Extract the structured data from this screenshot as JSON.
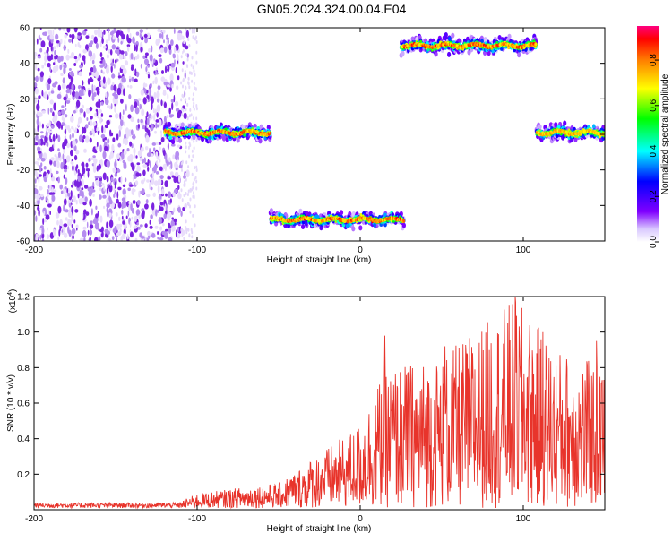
{
  "figure": {
    "title": "GN05.2024.324.00.04.E04"
  },
  "colorbar": {
    "label": "Normalized spectral amplitude",
    "range": [
      0,
      0.95
    ],
    "ticks": [
      "0.0",
      "0.2",
      "0.4",
      "0.6",
      "0.8"
    ],
    "tick_values": [
      0,
      0.2,
      0.4,
      0.6,
      0.8
    ],
    "colormap": "rainbow",
    "colors": [
      "#ffffff",
      "#8000ff",
      "#0000ff",
      "#00ffff",
      "#00ff00",
      "#ffff00",
      "#ff8000",
      "#ff0000",
      "#ff0080"
    ]
  },
  "chart_data": [
    {
      "type": "heatmap",
      "name": "spectrogram",
      "xlabel": "Height of straight line (km)",
      "ylabel": "Frequency (Hz)",
      "xlim": [
        -200,
        150
      ],
      "ylim": [
        -60,
        60
      ],
      "x_ticks": [
        "-200",
        "-100",
        "0",
        "100"
      ],
      "x_tick_values": [
        -200,
        -100,
        0,
        100
      ],
      "y_ticks": [
        "60",
        "40",
        "20",
        "0",
        "-20",
        "-40",
        "-60"
      ],
      "y_tick_values": [
        60,
        40,
        20,
        0,
        -20,
        -40,
        -60
      ],
      "noise_region": {
        "x_range": [
          -200,
          -110
        ],
        "amplitude": 0.1
      },
      "ridges": [
        {
          "x_range": [
            -120,
            -55
          ],
          "frequency": 1,
          "peak_amplitude": 0.9
        },
        {
          "x_range": [
            -55,
            27
          ],
          "frequency": -48,
          "peak_amplitude": 0.9
        },
        {
          "x_range": [
            25,
            108
          ],
          "frequency": 50,
          "peak_amplitude": 0.9
        },
        {
          "x_range": [
            108,
            150
          ],
          "frequency": 1,
          "peak_amplitude": 0.8
        }
      ]
    },
    {
      "type": "line",
      "name": "snr",
      "xlabel": "Height of straight line (km)",
      "ylabel": "SNR (10 * v/v)",
      "y_scale_label": "(x10",
      "y_scale_exponent": "4",
      "y_scale_close": ")",
      "xlim": [
        -200,
        150
      ],
      "ylim": [
        0,
        1.2
      ],
      "x_ticks": [
        "-200",
        "-100",
        "0",
        "100"
      ],
      "x_tick_values": [
        -200,
        -100,
        0,
        100
      ],
      "y_ticks": [
        "0.2",
        "0.4",
        "0.6",
        "0.8",
        "1.0",
        "1.2"
      ],
      "y_tick_values": [
        0.2,
        0.4,
        0.6,
        0.8,
        1.0,
        1.2
      ],
      "color": "#e8342b",
      "envelope": [
        {
          "x": -200,
          "y": 0.04
        },
        {
          "x": -110,
          "y": 0.04
        },
        {
          "x": -100,
          "y": 0.08
        },
        {
          "x": -70,
          "y": 0.12
        },
        {
          "x": -50,
          "y": 0.14
        },
        {
          "x": -30,
          "y": 0.28
        },
        {
          "x": -10,
          "y": 0.4
        },
        {
          "x": 0,
          "y": 0.48
        },
        {
          "x": 10,
          "y": 0.7
        },
        {
          "x": 20,
          "y": 0.8
        },
        {
          "x": 50,
          "y": 0.85
        },
        {
          "x": 95,
          "y": 1.18
        },
        {
          "x": 120,
          "y": 0.9
        },
        {
          "x": 150,
          "y": 0.8
        }
      ],
      "notable_peaks": [
        {
          "x": 15,
          "y": 0.98
        },
        {
          "x": 52,
          "y": 0.92
        },
        {
          "x": 95,
          "y": 1.2
        },
        {
          "x": 112,
          "y": 1.0
        },
        {
          "x": 145,
          "y": 0.95
        }
      ]
    }
  ]
}
